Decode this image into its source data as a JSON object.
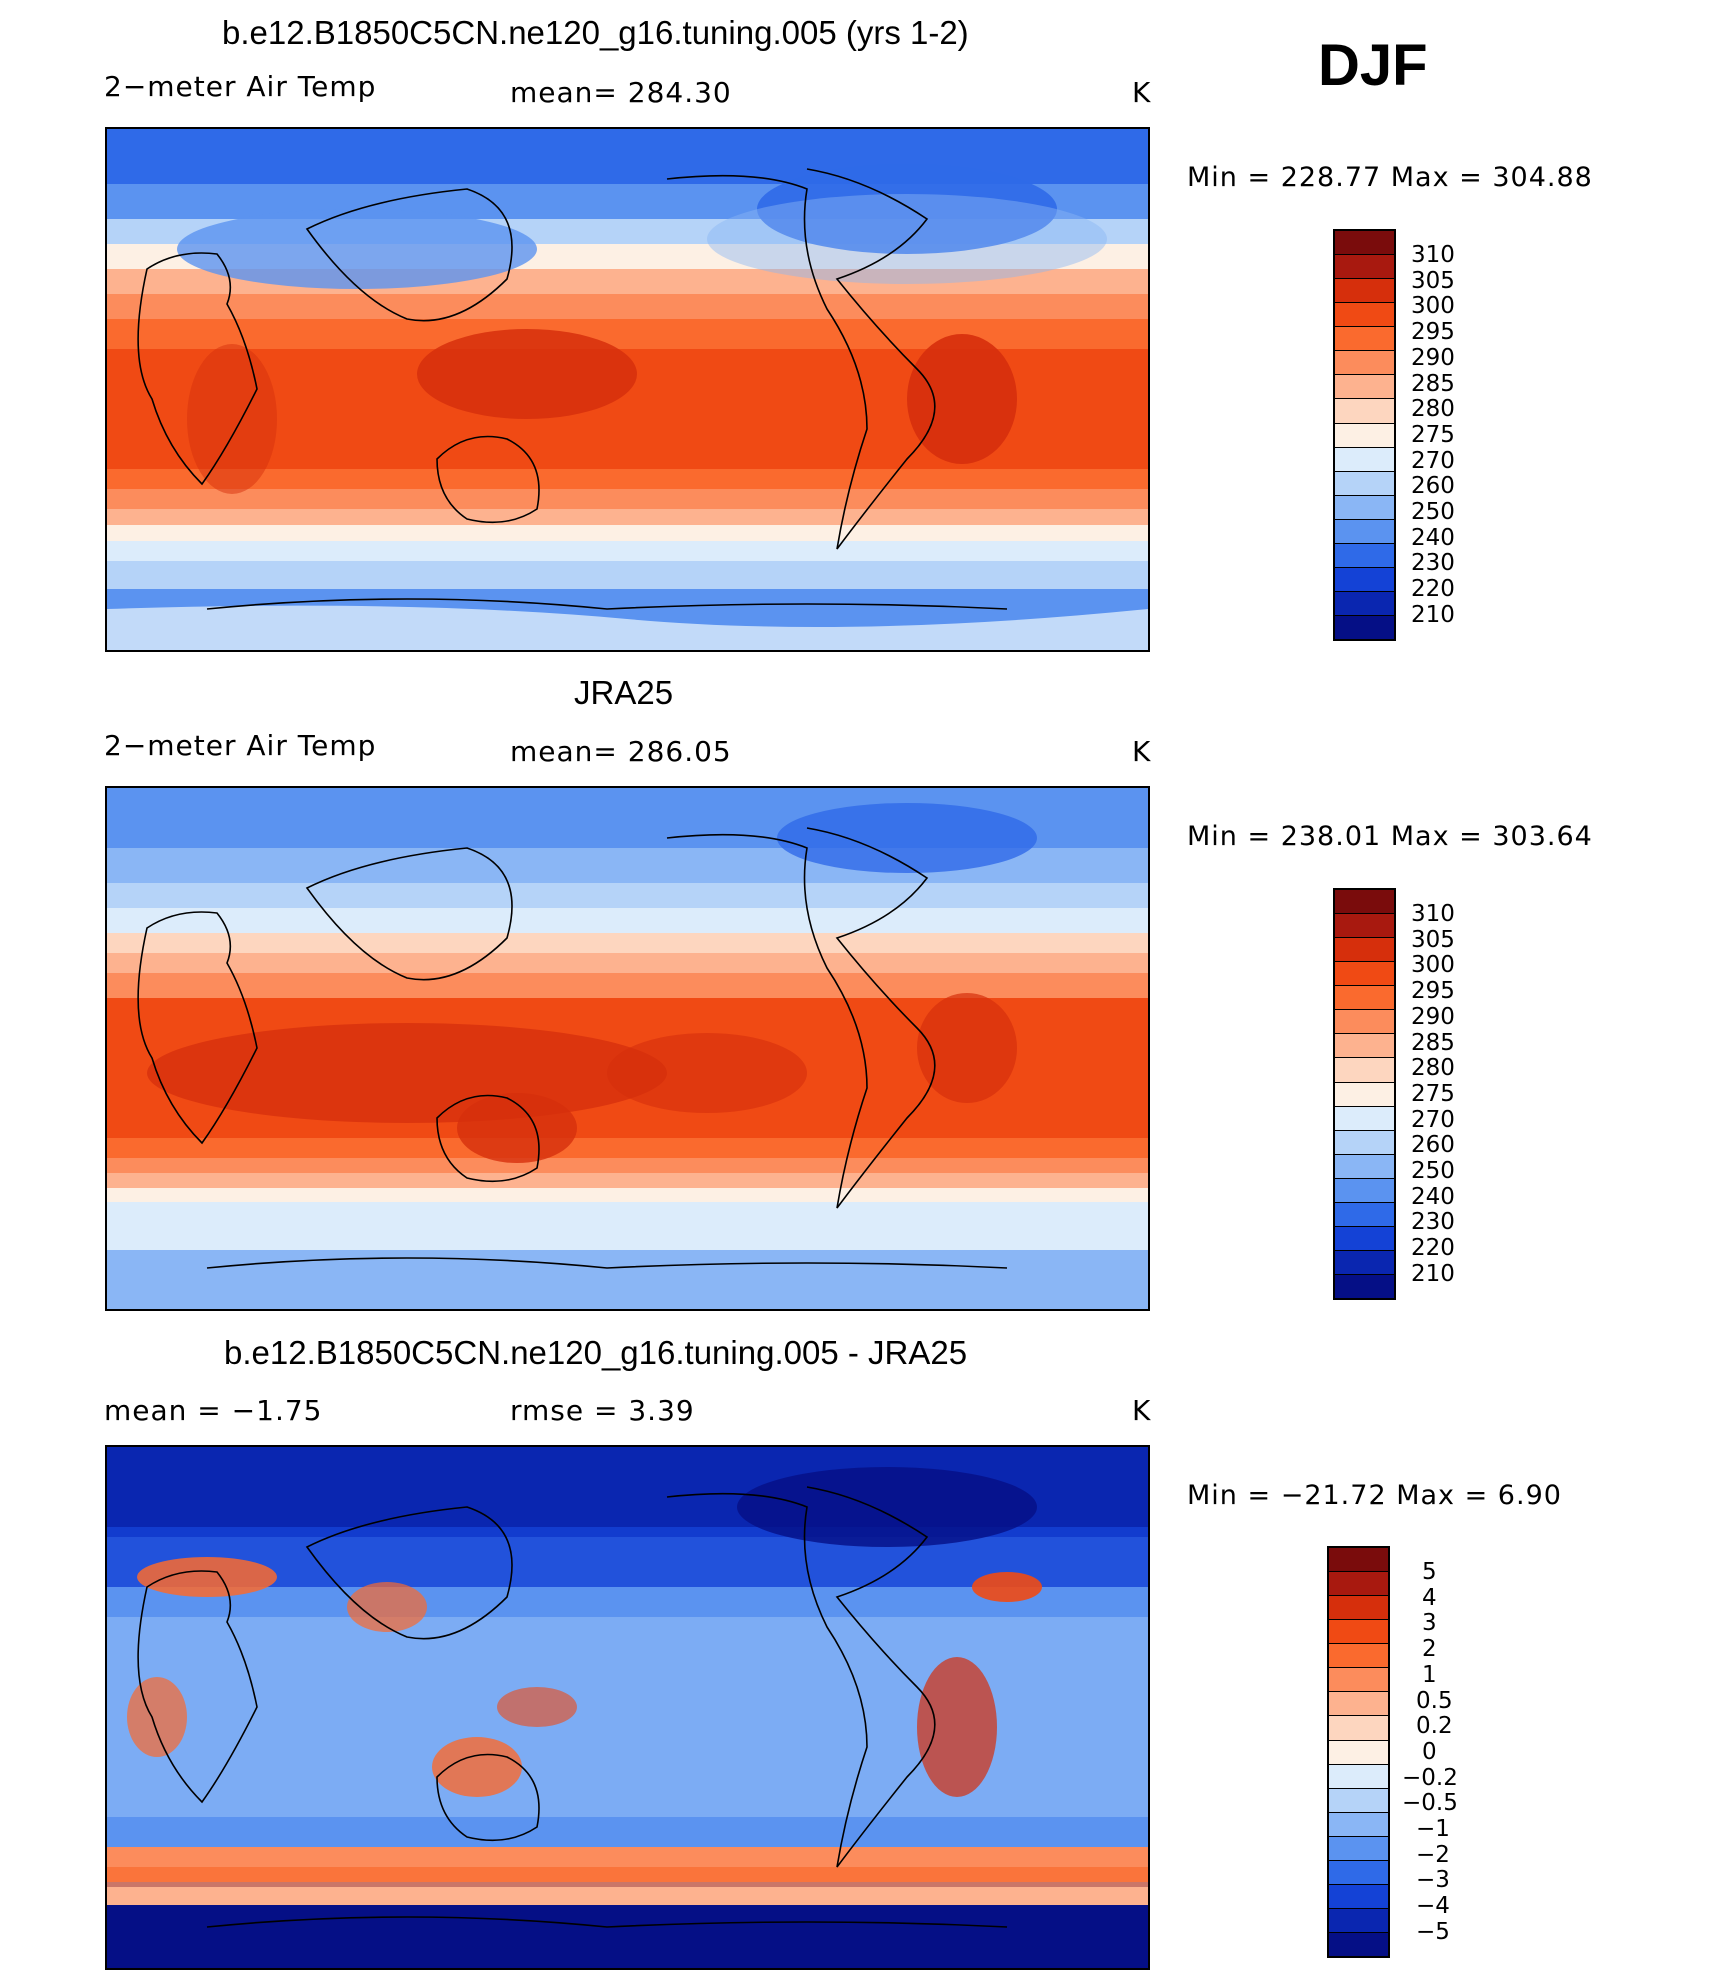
{
  "season": "DJF",
  "panels": [
    {
      "title": "b.e12.B1850C5CN.ne120_g16.tuning.005 (yrs 1-2)",
      "left_label": "2−meter Air Temp",
      "center_label": "mean=  284.30",
      "unit": "K",
      "minmax": "Min  =  228.77  Max  =  304.88",
      "colorbar_labels": [
        "310",
        "305",
        "300",
        "295",
        "290",
        "285",
        "280",
        "275",
        "270",
        "260",
        "250",
        "240",
        "230",
        "220",
        "210"
      ]
    },
    {
      "title": "JRA25",
      "left_label": "2−meter Air Temp",
      "center_label": "mean=  286.05",
      "unit": "K",
      "minmax": "Min  =  238.01  Max  =  303.64",
      "colorbar_labels": [
        "310",
        "305",
        "300",
        "295",
        "290",
        "285",
        "280",
        "275",
        "270",
        "260",
        "250",
        "240",
        "230",
        "220",
        "210"
      ]
    },
    {
      "title": "b.e12.B1850C5CN.ne120_g16.tuning.005 - JRA25",
      "left_label": "mean  =    −1.75",
      "center_label": "rmse  =      3.39",
      "unit": "K",
      "minmax": "Min  =  −21.72  Max  =      6.90",
      "colorbar_labels": [
        "5",
        "4",
        "3",
        "2",
        "1",
        "0.5",
        "0.2",
        "0",
        "−0.2",
        "−0.5",
        "−1",
        "−2",
        "−3",
        "−4",
        "−5"
      ]
    }
  ],
  "colors": {
    "abs_scale": [
      "#7a0c0c",
      "#a8190f",
      "#d62f0c",
      "#f04a14",
      "#fa6a2e",
      "#fc8c5c",
      "#fdb28f",
      "#fdd6bf",
      "#fdf0e4",
      "#dcecfb",
      "#b5d3f8",
      "#8ab6f5",
      "#5b93f0",
      "#2f6ae8",
      "#1442d6",
      "#0a26b0",
      "#050f86"
    ],
    "diff_scale": [
      "#7a0c0c",
      "#a8190f",
      "#d62f0c",
      "#f04a14",
      "#fa6a2e",
      "#fc8c5c",
      "#fdb28f",
      "#fdd6bf",
      "#fdf0e4",
      "#dcecfb",
      "#b5d3f8",
      "#8ab6f5",
      "#5b93f0",
      "#2f6ae8",
      "#1442d6",
      "#0a26b0",
      "#050f86"
    ]
  }
}
